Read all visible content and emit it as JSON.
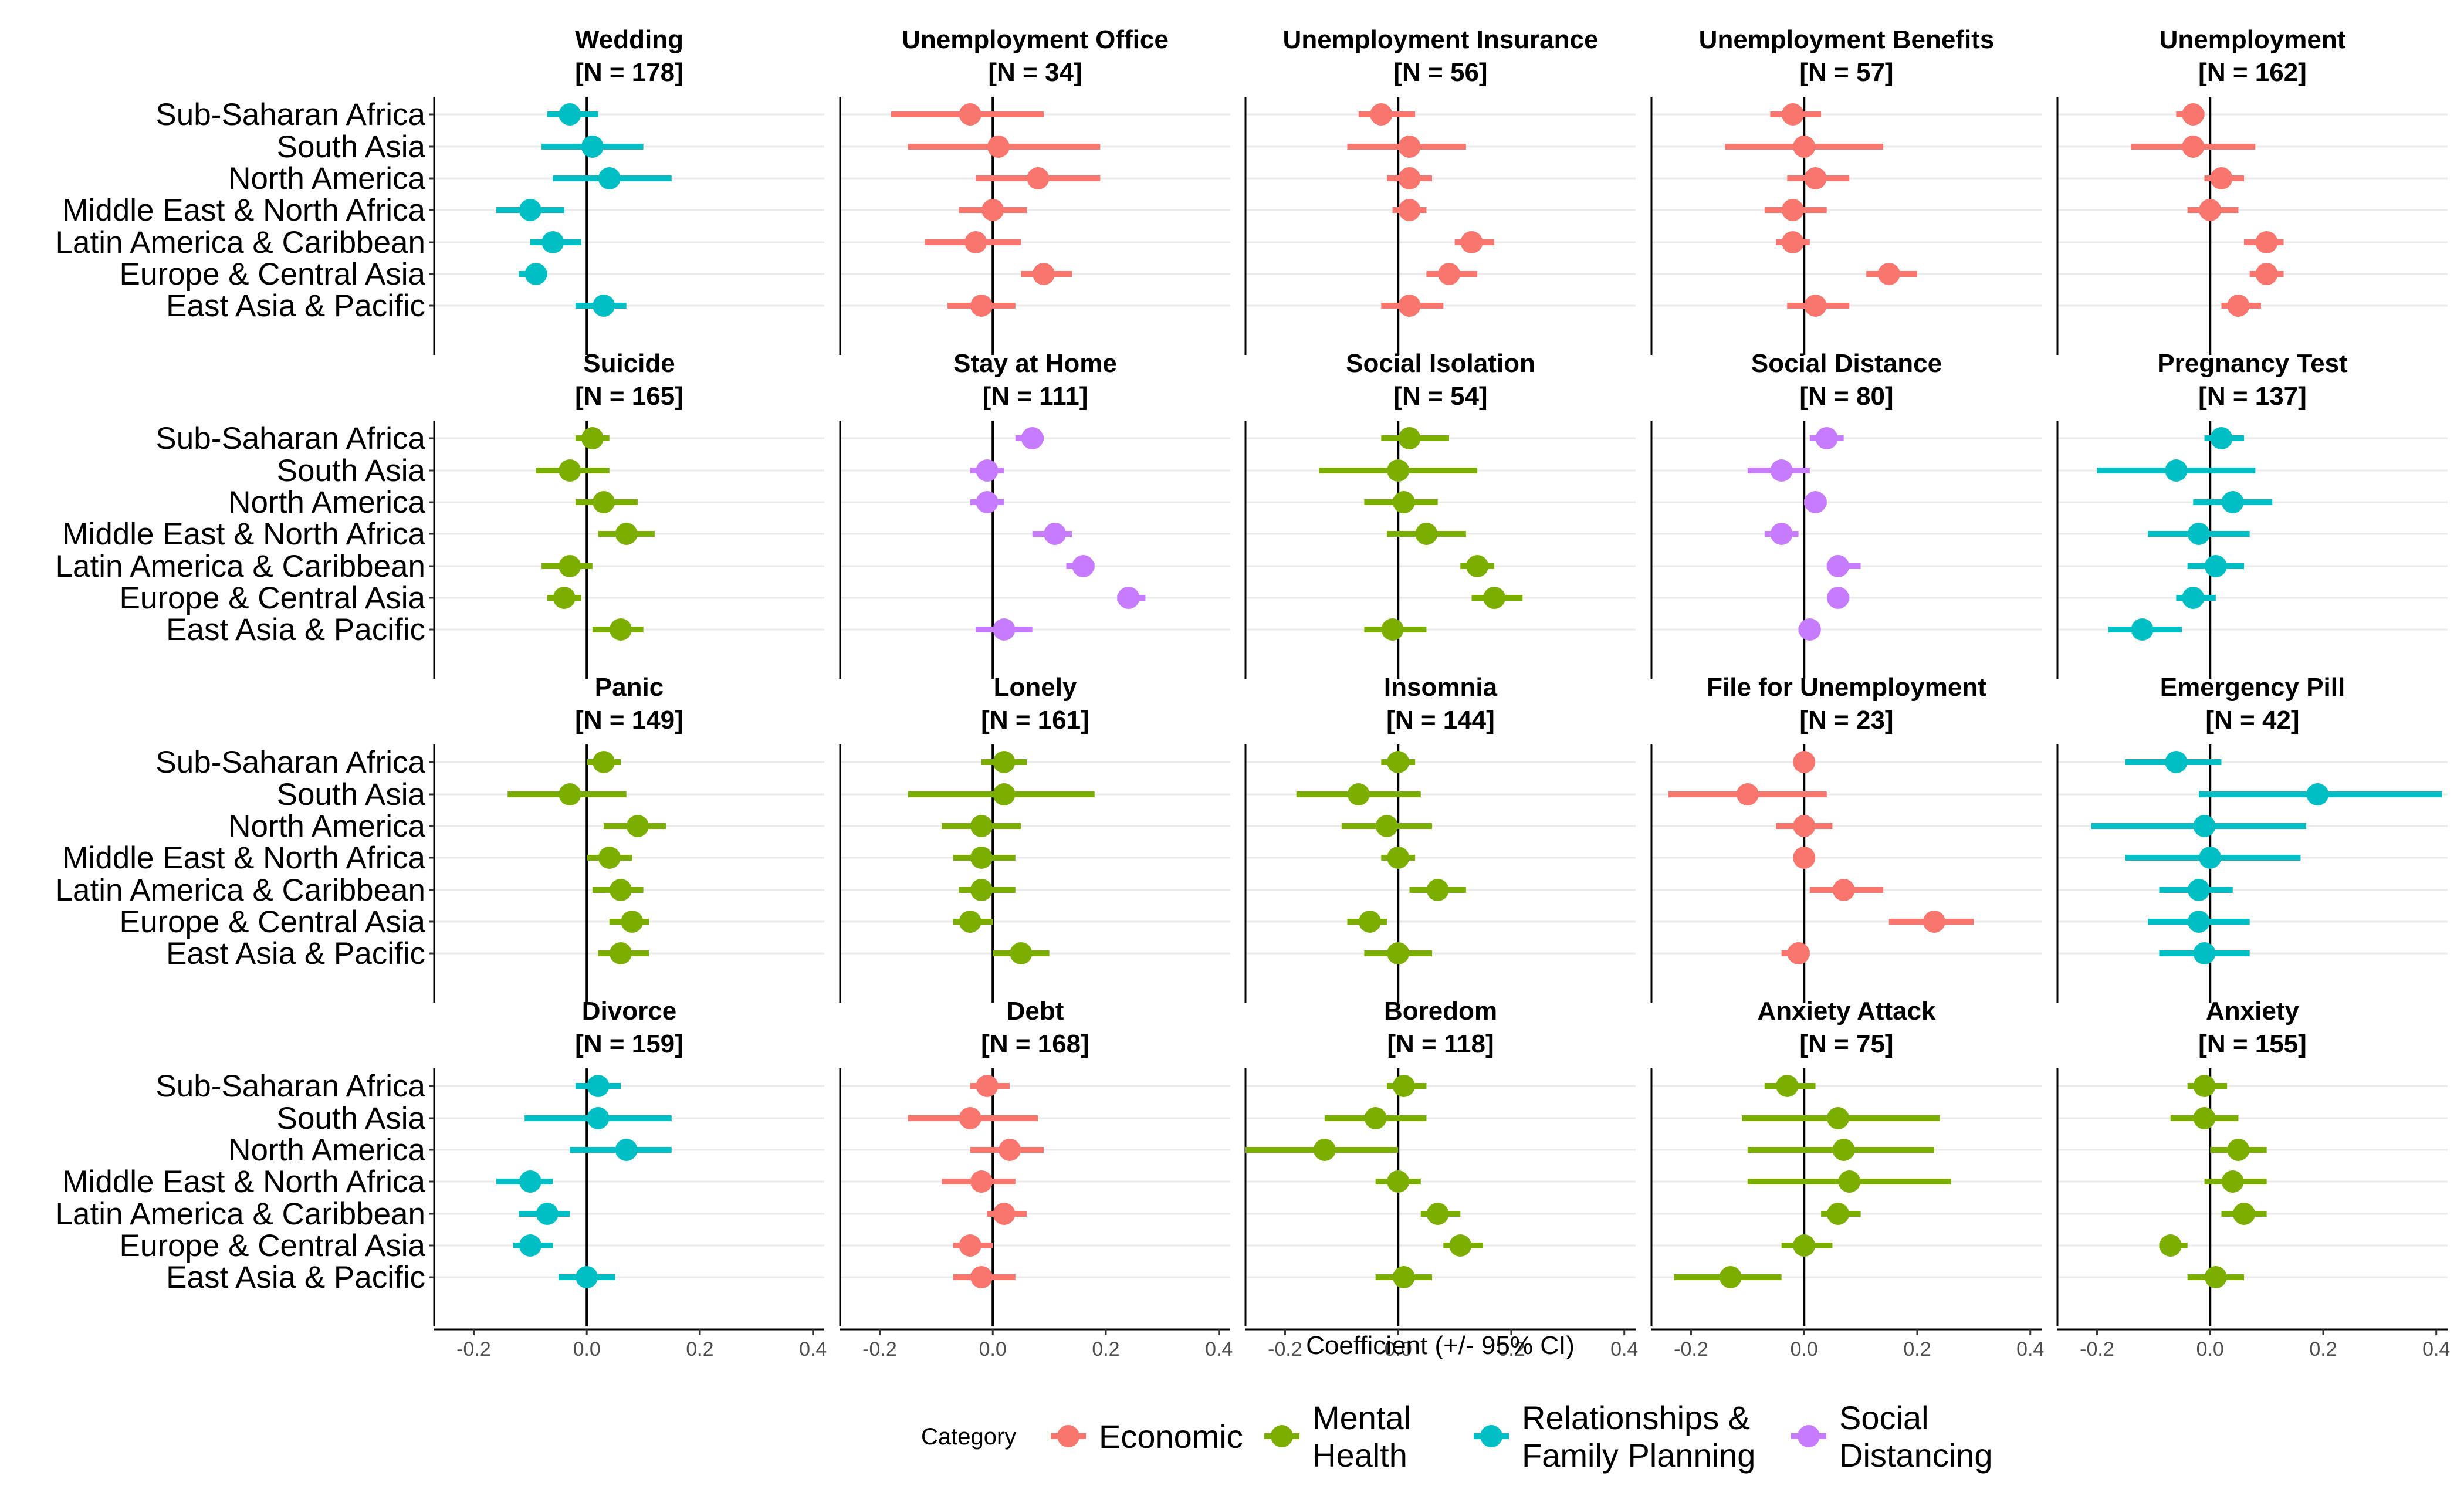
{
  "chart_data": {
    "type": "forest",
    "xlabel": "Coefficient (+/- 95% CI)",
    "xlim": [
      -0.27,
      0.42
    ],
    "xticks": [
      -0.2,
      0.0,
      0.2,
      0.4
    ],
    "xtick_labels": [
      "-0.2",
      "0.0",
      "0.2",
      "0.4"
    ],
    "grid": "horizontal major gridlines",
    "regions": [
      "Sub-Saharan Africa",
      "South Asia",
      "North America",
      "Middle East & North Africa",
      "Latin America & Caribbean",
      "Europe & Central Asia",
      "East Asia & Pacific"
    ],
    "legend": {
      "title": "Category",
      "placement": "bottom",
      "entries": [
        {
          "key": "Economic",
          "label_lines": [
            "Economic"
          ],
          "color": "#F8766D"
        },
        {
          "key": "Mental Health",
          "label_lines": [
            "Mental",
            "Health"
          ],
          "color": "#7CAE00"
        },
        {
          "key": "Relationships & Family Planning",
          "label_lines": [
            "Relationships &",
            "Family Planning"
          ],
          "color": "#00BFC4"
        },
        {
          "key": "Social Distancing",
          "label_lines": [
            "Social",
            "Distancing"
          ],
          "color": "#C77CFF"
        }
      ]
    },
    "panels": [
      {
        "title": "Wedding",
        "n_label": "[N = 178]",
        "category": "Relationships & Family Planning",
        "estimates": [
          -0.03,
          0.01,
          0.04,
          -0.1,
          -0.06,
          -0.09,
          0.03
        ],
        "lower": [
          -0.07,
          -0.08,
          -0.06,
          -0.16,
          -0.1,
          -0.12,
          -0.02
        ],
        "upper": [
          0.02,
          0.1,
          0.15,
          -0.04,
          -0.01,
          -0.07,
          0.07
        ]
      },
      {
        "title": "Unemployment Office",
        "n_label": "[N = 34]",
        "category": "Economic",
        "estimates": [
          -0.04,
          0.01,
          0.08,
          0.0,
          -0.03,
          0.09,
          -0.02
        ],
        "lower": [
          -0.18,
          -0.15,
          -0.03,
          -0.06,
          -0.12,
          0.05,
          -0.08
        ],
        "upper": [
          0.09,
          0.19,
          0.19,
          0.06,
          0.05,
          0.14,
          0.04
        ]
      },
      {
        "title": "Unemployment Insurance",
        "n_label": "[N = 56]",
        "category": "Economic",
        "estimates": [
          -0.03,
          0.02,
          0.02,
          0.02,
          0.13,
          0.09,
          0.02
        ],
        "lower": [
          -0.07,
          -0.09,
          -0.02,
          -0.01,
          0.1,
          0.05,
          -0.03
        ],
        "upper": [
          0.03,
          0.12,
          0.06,
          0.05,
          0.17,
          0.14,
          0.08
        ]
      },
      {
        "title": "Unemployment Benefits",
        "n_label": "[N = 57]",
        "category": "Economic",
        "estimates": [
          -0.02,
          0.0,
          0.02,
          -0.02,
          -0.02,
          0.15,
          0.02
        ],
        "lower": [
          -0.06,
          -0.14,
          -0.03,
          -0.07,
          -0.05,
          0.11,
          -0.03
        ],
        "upper": [
          0.03,
          0.14,
          0.08,
          0.04,
          0.01,
          0.2,
          0.08
        ]
      },
      {
        "title": "Unemployment",
        "n_label": "[N = 162]",
        "category": "Economic",
        "estimates": [
          -0.03,
          -0.03,
          0.02,
          0.0,
          0.1,
          0.1,
          0.05
        ],
        "lower": [
          -0.06,
          -0.14,
          -0.01,
          -0.04,
          0.06,
          0.07,
          0.02
        ],
        "upper": [
          -0.01,
          0.08,
          0.06,
          0.05,
          0.13,
          0.13,
          0.09
        ]
      },
      {
        "title": "Suicide",
        "n_label": "[N = 165]",
        "category": "Mental Health",
        "estimates": [
          0.01,
          -0.03,
          0.03,
          0.07,
          -0.03,
          -0.04,
          0.06
        ],
        "lower": [
          -0.02,
          -0.09,
          -0.02,
          0.02,
          -0.08,
          -0.07,
          0.01
        ],
        "upper": [
          0.04,
          0.04,
          0.09,
          0.12,
          0.01,
          -0.01,
          0.1
        ]
      },
      {
        "title": "Stay at Home",
        "n_label": "[N = 111]",
        "category": "Social Distancing",
        "estimates": [
          0.07,
          -0.01,
          -0.01,
          0.11,
          0.16,
          0.24,
          0.02
        ],
        "lower": [
          0.04,
          -0.04,
          -0.04,
          0.07,
          0.13,
          0.22,
          -0.03
        ],
        "upper": [
          0.09,
          0.02,
          0.02,
          0.14,
          0.18,
          0.27,
          0.07
        ]
      },
      {
        "title": "Social Isolation",
        "n_label": "[N = 54]",
        "category": "Mental Health",
        "estimates": [
          0.02,
          0.0,
          0.01,
          0.05,
          0.14,
          0.17,
          -0.01
        ],
        "lower": [
          -0.03,
          -0.14,
          -0.06,
          -0.02,
          0.11,
          0.13,
          -0.06
        ],
        "upper": [
          0.09,
          0.14,
          0.07,
          0.12,
          0.17,
          0.22,
          0.05
        ]
      },
      {
        "title": "Social Distance",
        "n_label": "[N = 80]",
        "category": "Social Distancing",
        "estimates": [
          0.04,
          -0.04,
          0.02,
          -0.04,
          0.06,
          0.06,
          0.01
        ],
        "lower": [
          0.01,
          -0.1,
          0.0,
          -0.07,
          0.04,
          0.05,
          -0.01
        ],
        "upper": [
          0.07,
          0.01,
          0.04,
          -0.01,
          0.1,
          0.08,
          0.02
        ]
      },
      {
        "title": "Pregnancy Test",
        "n_label": "[N = 137]",
        "category": "Relationships & Family Planning",
        "estimates": [
          0.02,
          -0.06,
          0.04,
          -0.02,
          0.01,
          -0.03,
          -0.12
        ],
        "lower": [
          -0.01,
          -0.2,
          -0.03,
          -0.11,
          -0.04,
          -0.06,
          -0.18
        ],
        "upper": [
          0.06,
          0.08,
          0.11,
          0.07,
          0.06,
          0.01,
          -0.05
        ]
      },
      {
        "title": "Panic",
        "n_label": "[N = 149]",
        "category": "Mental Health",
        "estimates": [
          0.03,
          -0.03,
          0.09,
          0.04,
          0.06,
          0.08,
          0.06
        ],
        "lower": [
          0.0,
          -0.14,
          0.03,
          0.0,
          0.01,
          0.04,
          0.02
        ],
        "upper": [
          0.06,
          0.07,
          0.14,
          0.08,
          0.1,
          0.11,
          0.11
        ]
      },
      {
        "title": "Lonely",
        "n_label": "[N = 161]",
        "category": "Mental Health",
        "estimates": [
          0.02,
          0.02,
          -0.02,
          -0.02,
          -0.02,
          -0.04,
          0.05
        ],
        "lower": [
          -0.02,
          -0.15,
          -0.09,
          -0.07,
          -0.06,
          -0.07,
          0.0
        ],
        "upper": [
          0.06,
          0.18,
          0.05,
          0.04,
          0.04,
          0.0,
          0.1
        ]
      },
      {
        "title": "Insomnia",
        "n_label": "[N = 144]",
        "category": "Mental Health",
        "estimates": [
          0.0,
          -0.07,
          -0.02,
          0.0,
          0.07,
          -0.05,
          0.0
        ],
        "lower": [
          -0.03,
          -0.18,
          -0.1,
          -0.03,
          0.02,
          -0.09,
          -0.06
        ],
        "upper": [
          0.03,
          0.04,
          0.06,
          0.03,
          0.12,
          -0.02,
          0.06
        ]
      },
      {
        "title": "File for Unemployment",
        "n_label": "[N = 23]",
        "category": "Economic",
        "estimates": [
          0.0,
          -0.1,
          0.0,
          0.0,
          0.07,
          0.23,
          -0.01
        ],
        "lower": [
          0.0,
          -0.24,
          -0.05,
          0.0,
          0.01,
          0.15,
          -0.04
        ],
        "upper": [
          0.0,
          0.04,
          0.05,
          0.0,
          0.14,
          0.3,
          0.01
        ]
      },
      {
        "title": "Emergency Pill",
        "n_label": "[N = 42]",
        "category": "Relationships & Family Planning",
        "estimates": [
          -0.06,
          0.19,
          -0.01,
          0.0,
          -0.02,
          -0.02,
          -0.01
        ],
        "lower": [
          -0.15,
          -0.02,
          -0.21,
          -0.15,
          -0.09,
          -0.11,
          -0.09
        ],
        "upper": [
          0.02,
          0.41,
          0.17,
          0.16,
          0.04,
          0.07,
          0.07
        ]
      },
      {
        "title": "Divorce",
        "n_label": "[N = 159]",
        "category": "Relationships & Family Planning",
        "estimates": [
          0.02,
          0.02,
          0.07,
          -0.1,
          -0.07,
          -0.1,
          0.0
        ],
        "lower": [
          -0.02,
          -0.11,
          -0.03,
          -0.16,
          -0.12,
          -0.13,
          -0.05
        ],
        "upper": [
          0.06,
          0.15,
          0.15,
          -0.06,
          -0.03,
          -0.06,
          0.05
        ]
      },
      {
        "title": "Debt",
        "n_label": "[N = 168]",
        "category": "Economic",
        "estimates": [
          -0.01,
          -0.04,
          0.03,
          -0.02,
          0.02,
          -0.04,
          -0.02
        ],
        "lower": [
          -0.04,
          -0.15,
          -0.04,
          -0.09,
          -0.01,
          -0.07,
          -0.07
        ],
        "upper": [
          0.03,
          0.08,
          0.09,
          0.04,
          0.06,
          0.0,
          0.04
        ]
      },
      {
        "title": "Boredom",
        "n_label": "[N = 118]",
        "category": "Mental Health",
        "estimates": [
          0.01,
          -0.04,
          -0.13,
          0.0,
          0.07,
          0.11,
          0.01
        ],
        "lower": [
          -0.02,
          -0.13,
          -0.27,
          -0.04,
          0.04,
          0.08,
          -0.04
        ],
        "upper": [
          0.05,
          0.05,
          0.0,
          0.04,
          0.11,
          0.15,
          0.06
        ]
      },
      {
        "title": "Anxiety Attack",
        "n_label": "[N = 75]",
        "category": "Mental Health",
        "estimates": [
          -0.03,
          0.06,
          0.07,
          0.08,
          0.06,
          0.0,
          -0.13
        ],
        "lower": [
          -0.07,
          -0.11,
          -0.1,
          -0.1,
          0.03,
          -0.04,
          -0.23
        ],
        "upper": [
          0.02,
          0.24,
          0.23,
          0.26,
          0.1,
          0.05,
          -0.04
        ]
      },
      {
        "title": "Anxiety",
        "n_label": "[N = 155]",
        "category": "Mental Health",
        "estimates": [
          -0.01,
          -0.01,
          0.05,
          0.04,
          0.06,
          -0.07,
          0.01
        ],
        "lower": [
          -0.04,
          -0.07,
          0.0,
          -0.01,
          0.02,
          -0.09,
          -0.04
        ],
        "upper": [
          0.03,
          0.05,
          0.1,
          0.1,
          0.1,
          -0.04,
          0.06
        ]
      }
    ]
  }
}
